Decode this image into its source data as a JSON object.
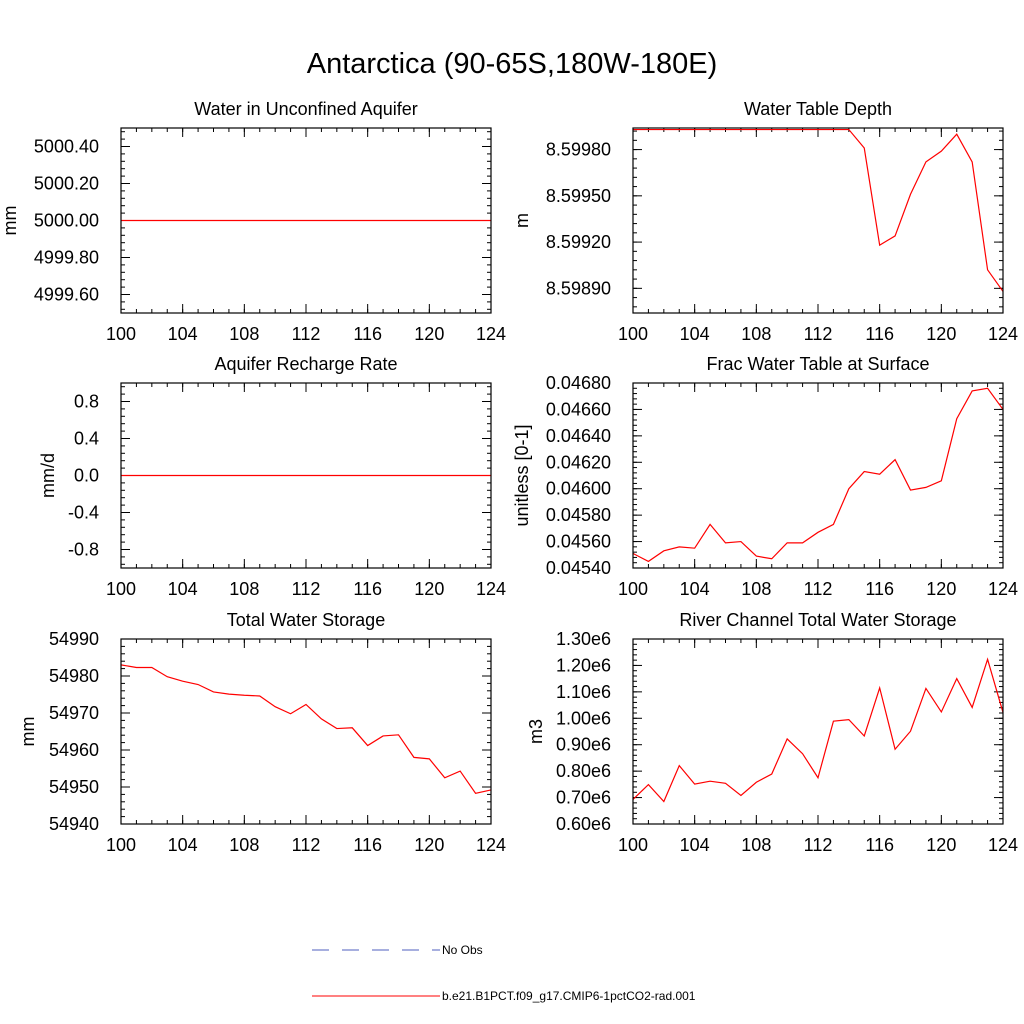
{
  "figure": {
    "title": "Antarctica (90-65S,180W-180E)"
  },
  "legend": {
    "entries": [
      {
        "label": "No Obs",
        "color": "#4f5fbf",
        "style": "dashed"
      },
      {
        "label": "b.e21.B1PCT.f09_g17.CMIP6-1pctCO2-rad.001",
        "color": "#ff0000",
        "style": "solid"
      }
    ]
  },
  "chart_data": [
    {
      "type": "line",
      "title": "Water in Unconfined Aquifer",
      "xlabel": "",
      "ylabel": "mm",
      "xlim": [
        100,
        124
      ],
      "ylim": [
        4999.5,
        5000.5
      ],
      "xticks": [
        100,
        104,
        108,
        112,
        116,
        120,
        124
      ],
      "yticks": [
        4999.6,
        4999.8,
        5000.0,
        5000.2,
        5000.4
      ],
      "yticklabels": [
        "4999.60",
        "4999.80",
        "5000.00",
        "5000.20",
        "5000.40"
      ],
      "yminor": 0.04,
      "series": [
        {
          "color": "#ff0000",
          "x": [
            100,
            101,
            102,
            103,
            104,
            105,
            106,
            107,
            108,
            109,
            110,
            111,
            112,
            113,
            114,
            115,
            116,
            117,
            118,
            119,
            120,
            121,
            122,
            123,
            124
          ],
          "y": [
            5000,
            5000,
            5000,
            5000,
            5000,
            5000,
            5000,
            5000,
            5000,
            5000,
            5000,
            5000,
            5000,
            5000,
            5000,
            5000,
            5000,
            5000,
            5000,
            5000,
            5000,
            5000,
            5000,
            5000,
            5000
          ]
        }
      ]
    },
    {
      "type": "line",
      "title": "Water Table Depth",
      "xlabel": "",
      "ylabel": "m",
      "xlim": [
        100,
        124
      ],
      "ylim": [
        8.59874,
        8.59994
      ],
      "xticks": [
        100,
        104,
        108,
        112,
        116,
        120,
        124
      ],
      "yticks": [
        8.5989,
        8.5992,
        8.5995,
        8.5998
      ],
      "yticklabels": [
        "8.59890",
        "8.59920",
        "8.59950",
        "8.59980"
      ],
      "yminor": 6e-05,
      "series": [
        {
          "color": "#ff0000",
          "x": [
            100,
            101,
            102,
            103,
            104,
            105,
            106,
            107,
            108,
            109,
            110,
            111,
            112,
            113,
            114,
            115,
            116,
            117,
            118,
            119,
            120,
            121,
            122,
            123,
            124
          ],
          "y": [
            8.59993,
            8.59993,
            8.59993,
            8.59993,
            8.59993,
            8.59993,
            8.59993,
            8.59993,
            8.59993,
            8.59993,
            8.59993,
            8.59993,
            8.59993,
            8.59993,
            8.59993,
            8.59981,
            8.59918,
            8.59924,
            8.59951,
            8.59972,
            8.59979,
            8.5999,
            8.59972,
            8.59902,
            8.59888
          ]
        }
      ]
    },
    {
      "type": "line",
      "title": "Aquifer Recharge Rate",
      "xlabel": "",
      "ylabel": "mm/d",
      "xlim": [
        100,
        124
      ],
      "ylim": [
        -1.0,
        1.0
      ],
      "xticks": [
        100,
        104,
        108,
        112,
        116,
        120,
        124
      ],
      "yticks": [
        -0.8,
        -0.4,
        0.0,
        0.4,
        0.8
      ],
      "yticklabels": [
        "-0.8",
        "-0.4",
        "0.0",
        "0.4",
        "0.8"
      ],
      "yminor": 0.08,
      "series": [
        {
          "color": "#ff0000",
          "x": [
            100,
            101,
            102,
            103,
            104,
            105,
            106,
            107,
            108,
            109,
            110,
            111,
            112,
            113,
            114,
            115,
            116,
            117,
            118,
            119,
            120,
            121,
            122,
            123,
            124
          ],
          "y": [
            0,
            0,
            0,
            0,
            0,
            0,
            0,
            0,
            0,
            0,
            0,
            0,
            0,
            0,
            0,
            0,
            0,
            0,
            0,
            0,
            0,
            0,
            0,
            0,
            0
          ]
        }
      ]
    },
    {
      "type": "line",
      "title": "Frac Water Table at Surface",
      "xlabel": "",
      "ylabel": "unitless [0-1]",
      "xlim": [
        100,
        124
      ],
      "ylim": [
        0.0454,
        0.0468
      ],
      "xticks": [
        100,
        104,
        108,
        112,
        116,
        120,
        124
      ],
      "yticks": [
        0.0454,
        0.0456,
        0.0458,
        0.046,
        0.0462,
        0.0464,
        0.0466,
        0.0468
      ],
      "yticklabels": [
        "0.04540",
        "0.04560",
        "0.04580",
        "0.04600",
        "0.04620",
        "0.04640",
        "0.04660",
        "0.04680"
      ],
      "yminor": 4e-05,
      "series": [
        {
          "color": "#ff0000",
          "x": [
            100,
            101,
            102,
            103,
            104,
            105,
            106,
            107,
            108,
            109,
            110,
            111,
            112,
            113,
            114,
            115,
            116,
            117,
            118,
            119,
            120,
            121,
            122,
            123,
            124
          ],
          "y": [
            0.04551,
            0.04545,
            0.04553,
            0.04556,
            0.04555,
            0.04573,
            0.04559,
            0.0456,
            0.04549,
            0.04547,
            0.04559,
            0.04559,
            0.04567,
            0.04573,
            0.046,
            0.04613,
            0.04611,
            0.04622,
            0.04599,
            0.04601,
            0.04606,
            0.04653,
            0.04674,
            0.04676,
            0.0466
          ]
        }
      ]
    },
    {
      "type": "line",
      "title": "Total Water Storage",
      "xlabel": "",
      "ylabel": "mm",
      "xlim": [
        100,
        124
      ],
      "ylim": [
        54940,
        54990
      ],
      "xticks": [
        100,
        104,
        108,
        112,
        116,
        120,
        124
      ],
      "yticks": [
        54940,
        54950,
        54960,
        54970,
        54980,
        54990
      ],
      "yticklabels": [
        "54940",
        "54950",
        "54960",
        "54970",
        "54980",
        "54990"
      ],
      "yminor": 2,
      "series": [
        {
          "color": "#ff0000",
          "x": [
            100,
            101,
            102,
            103,
            104,
            105,
            106,
            107,
            108,
            109,
            110,
            111,
            112,
            113,
            114,
            115,
            116,
            117,
            118,
            119,
            120,
            121,
            122,
            123,
            124
          ],
          "y": [
            54983,
            54982.3,
            54982.3,
            54979.8,
            54978.6,
            54977.7,
            54975.7,
            54975.1,
            54974.8,
            54974.6,
            54971.7,
            54969.8,
            54972.3,
            54968.4,
            54965.8,
            54966,
            54961.2,
            54963.8,
            54964.1,
            54958,
            54957.6,
            54952.5,
            54954.3,
            54948.3,
            54949.2
          ]
        }
      ]
    },
    {
      "type": "line",
      "title": "River Channel Total Water Storage",
      "xlabel": "",
      "ylabel": "m3",
      "xlim": [
        100,
        124
      ],
      "ylim": [
        600000,
        1300000
      ],
      "xticks": [
        100,
        104,
        108,
        112,
        116,
        120,
        124
      ],
      "yticks": [
        600000,
        700000,
        800000,
        900000,
        1000000,
        1100000,
        1200000,
        1300000
      ],
      "yticklabels": [
        "0.60e6",
        "0.70e6",
        "0.80e6",
        "0.90e6",
        "1.00e6",
        "1.10e6",
        "1.20e6",
        "1.30e6"
      ],
      "yminor": 20000,
      "series": [
        {
          "color": "#ff0000",
          "x": [
            100,
            101,
            102,
            103,
            104,
            105,
            106,
            107,
            108,
            109,
            110,
            111,
            112,
            113,
            114,
            115,
            116,
            117,
            118,
            119,
            120,
            121,
            122,
            123,
            124
          ],
          "y": [
            693000,
            749000,
            685000,
            821000,
            751000,
            762000,
            754000,
            708000,
            758000,
            789000,
            922000,
            866000,
            775000,
            989000,
            995000,
            933000,
            1115000,
            883000,
            951000,
            1113000,
            1024000,
            1150000,
            1041000,
            1223000,
            1022000
          ]
        }
      ]
    }
  ]
}
